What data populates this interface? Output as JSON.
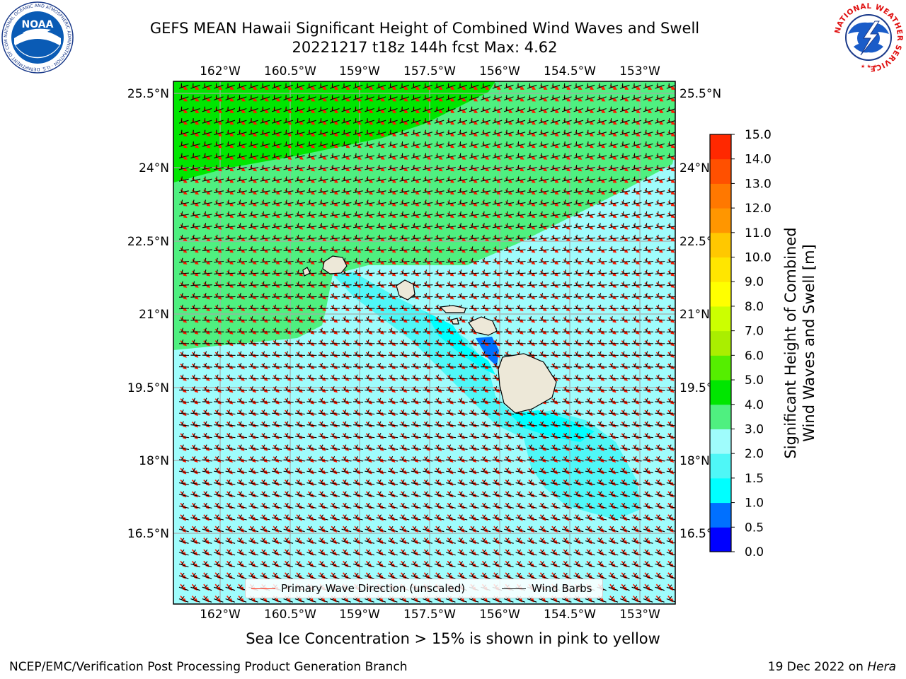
{
  "header": {
    "title_line1": "GEFS MEAN Hawaii Significant Height of Combined Wind Waves and Swell",
    "title_line2": "20221217 t18z 144h fcst   Max: 4.62"
  },
  "logos": {
    "left": "noaa-logo",
    "right": "national-weather-service-logo",
    "left_ring_text": "NATIONAL OCEANIC AND ATMOSPHERIC ADMINISTRATION · U.S. DEPARTMENT OF COMMERCE",
    "left_center_text": "NOAA",
    "right_ring_text": "NATIONAL WEATHER SERVICE"
  },
  "map": {
    "lon_labels": [
      "162°W",
      "160.5°W",
      "159°W",
      "157.5°W",
      "156°W",
      "154.5°W",
      "153°W"
    ],
    "lat_labels": [
      "25.5°N",
      "24°N",
      "22.5°N",
      "21°N",
      "19.5°N",
      "18°N",
      "16.5°N"
    ],
    "fill_colors": {
      "green_high": "#00e600",
      "green_mid": "#4ff080",
      "cyan_light": "#9ffcfc",
      "cyan_mid": "#4ff7f7",
      "cyan": "#00ffff",
      "blue": "#0070ff",
      "land": "#ede8d8"
    },
    "wave_direction_color": "#ff1a00",
    "wind_barb_color": "#000000"
  },
  "colorbar": {
    "title_line1": "Significant Height of Combined",
    "title_line2": "Wind Waves and Swell [m]",
    "tick_labels": [
      "15.0",
      "14.0",
      "13.0",
      "12.0",
      "11.0",
      "10.0",
      "9.0",
      "8.0",
      "7.0",
      "6.0",
      "5.0",
      "4.0",
      "3.0",
      "2.0",
      "1.5",
      "1.0",
      "0.5",
      "0.0"
    ],
    "colors": [
      "#0000ff",
      "#0070ff",
      "#00ffff",
      "#4ff7f7",
      "#9ffcfc",
      "#4ff080",
      "#00e600",
      "#55ee00",
      "#aaee00",
      "#ccff00",
      "#ffff00",
      "#ffe600",
      "#ffc800",
      "#ff9600",
      "#ff7800",
      "#ff5000",
      "#ff2800",
      "#ff0000"
    ]
  },
  "legend": {
    "wave_label": "Primary Wave Direction (unscaled)",
    "barb_label": "Wind Barbs"
  },
  "caption": "Sea Ice Concentration > 15% is shown in pink to yellow",
  "footer": {
    "left": "NCEP/EMC/Verification Post Processing Product Generation Branch",
    "right_date": "19 Dec 2022 on",
    "right_machine": "Hera"
  }
}
